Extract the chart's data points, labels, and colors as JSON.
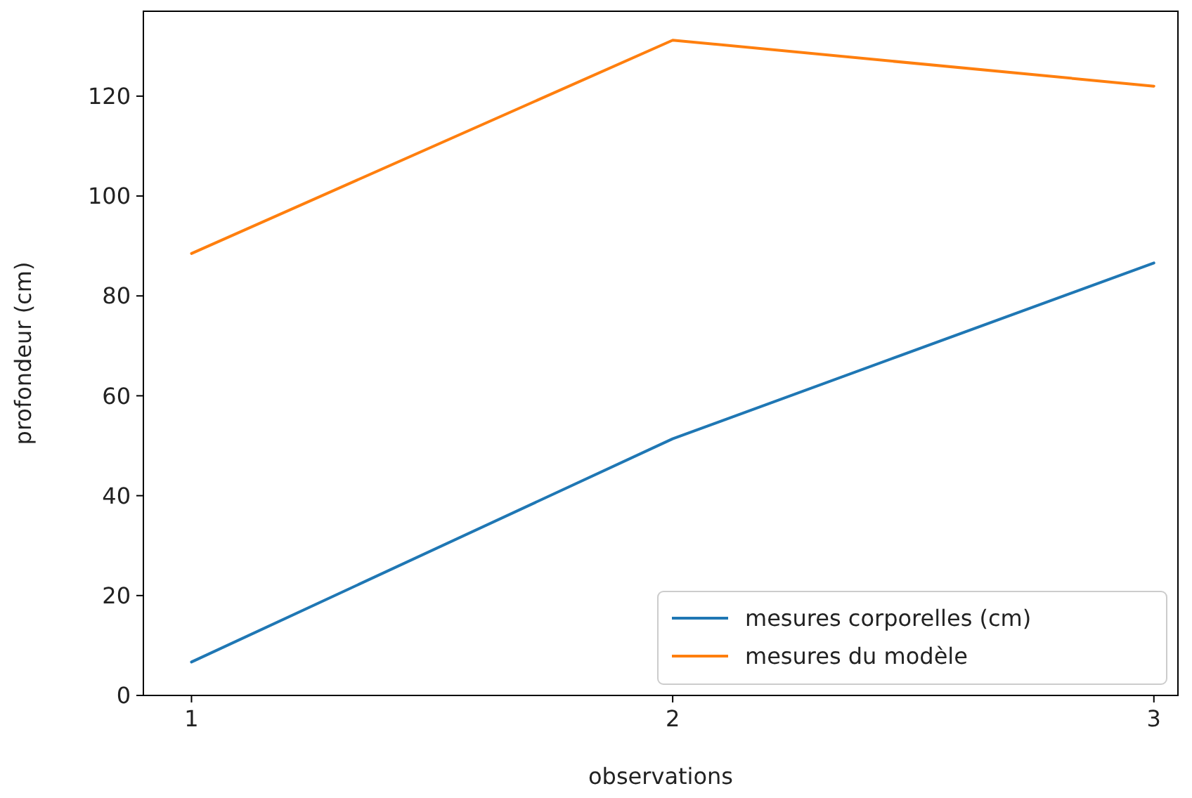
{
  "chart_data": {
    "type": "line",
    "xlabel": "observations",
    "ylabel": "profondeur (cm)",
    "x": [
      1,
      2,
      3
    ],
    "xlim": [
      0.9,
      3.05
    ],
    "xticks": [
      1,
      2,
      3
    ],
    "ylim": [
      0,
      137
    ],
    "yticks": [
      0,
      20,
      40,
      60,
      80,
      100,
      120
    ],
    "series": [
      {
        "name": "mesures corporelles (cm)",
        "color": "#1f77b4",
        "values": [
          6.7,
          51.4,
          86.6
        ]
      },
      {
        "name": "mesures du modèle",
        "color": "#ff7f0e",
        "values": [
          88.5,
          131.2,
          122
        ]
      }
    ],
    "legend": "bottom right",
    "grid": false,
    "marker": "none",
    "line_style": "solid"
  }
}
